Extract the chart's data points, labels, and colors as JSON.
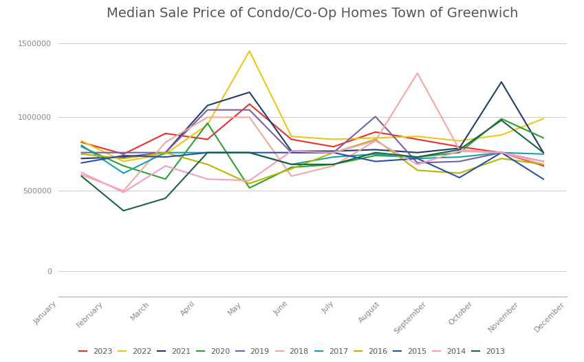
{
  "title": "Median Sale Price of Condo/Co-Op Homes Town of Greenwich",
  "months": [
    "January",
    "February",
    "March",
    "April",
    "May",
    "June",
    "July",
    "August",
    "September",
    "October",
    "November",
    "December"
  ],
  "series": {
    "2023": {
      "color": "#e8312a",
      "values": [
        830000,
        750000,
        890000,
        850000,
        1090000,
        850000,
        800000,
        900000,
        850000,
        800000,
        760000,
        670000
      ]
    },
    "2022": {
      "color": "#f0c419",
      "values": [
        840000,
        700000,
        750000,
        950000,
        1450000,
        870000,
        850000,
        860000,
        870000,
        840000,
        880000,
        990000
      ]
    },
    "2021": {
      "color": "#1f3c6e",
      "values": [
        720000,
        730000,
        760000,
        1080000,
        1170000,
        770000,
        770000,
        780000,
        760000,
        790000,
        1240000,
        760000
      ]
    },
    "2020": {
      "color": "#2ca02c",
      "values": [
        800000,
        670000,
        580000,
        960000,
        520000,
        660000,
        680000,
        740000,
        730000,
        760000,
        990000,
        860000
      ]
    },
    "2019": {
      "color": "#7b5ea7",
      "values": [
        760000,
        760000,
        760000,
        1050000,
        1050000,
        760000,
        760000,
        1005000,
        690000,
        700000,
        760000,
        700000
      ]
    },
    "2018": {
      "color": "#f4a6a0",
      "values": [
        610000,
        500000,
        830000,
        1000000,
        1000000,
        600000,
        670000,
        840000,
        1300000,
        780000,
        760000,
        680000
      ]
    },
    "2017": {
      "color": "#17a3a3",
      "values": [
        810000,
        620000,
        760000,
        760000,
        760000,
        680000,
        730000,
        750000,
        720000,
        730000,
        760000,
        750000
      ]
    },
    "2016": {
      "color": "#b5b800",
      "values": [
        750000,
        720000,
        760000,
        680000,
        550000,
        650000,
        760000,
        850000,
        640000,
        620000,
        720000,
        680000
      ]
    },
    "2015": {
      "color": "#2b4fae",
      "values": [
        690000,
        740000,
        730000,
        760000,
        760000,
        760000,
        760000,
        700000,
        720000,
        590000,
        760000,
        580000
      ]
    },
    "2014": {
      "color": "#f79ec2",
      "values": [
        625000,
        490000,
        670000,
        580000,
        570000,
        770000,
        760000,
        840000,
        680000,
        770000,
        760000,
        700000
      ]
    },
    "2013": {
      "color": "#1a6340",
      "values": [
        600000,
        365000,
        450000,
        760000,
        760000,
        680000,
        680000,
        760000,
        730000,
        780000,
        980000,
        760000
      ]
    }
  },
  "ylim": [
    0,
    1600000
  ],
  "yticks": [
    0,
    500000,
    1000000,
    1500000
  ],
  "ytick_labels": [
    "0",
    "500000",
    "1000000",
    "1500000"
  ],
  "figsize": [
    8.49,
    5.26
  ],
  "dpi": 100,
  "background_color": "#ffffff",
  "grid_color": "#cccccc",
  "title_fontsize": 14,
  "legend_fontsize": 8,
  "tick_fontsize": 8,
  "legend_order": [
    "2023",
    "2022",
    "2021",
    "2020",
    "2019",
    "2018",
    "2017",
    "2016",
    "2015",
    "2014",
    "2013"
  ]
}
